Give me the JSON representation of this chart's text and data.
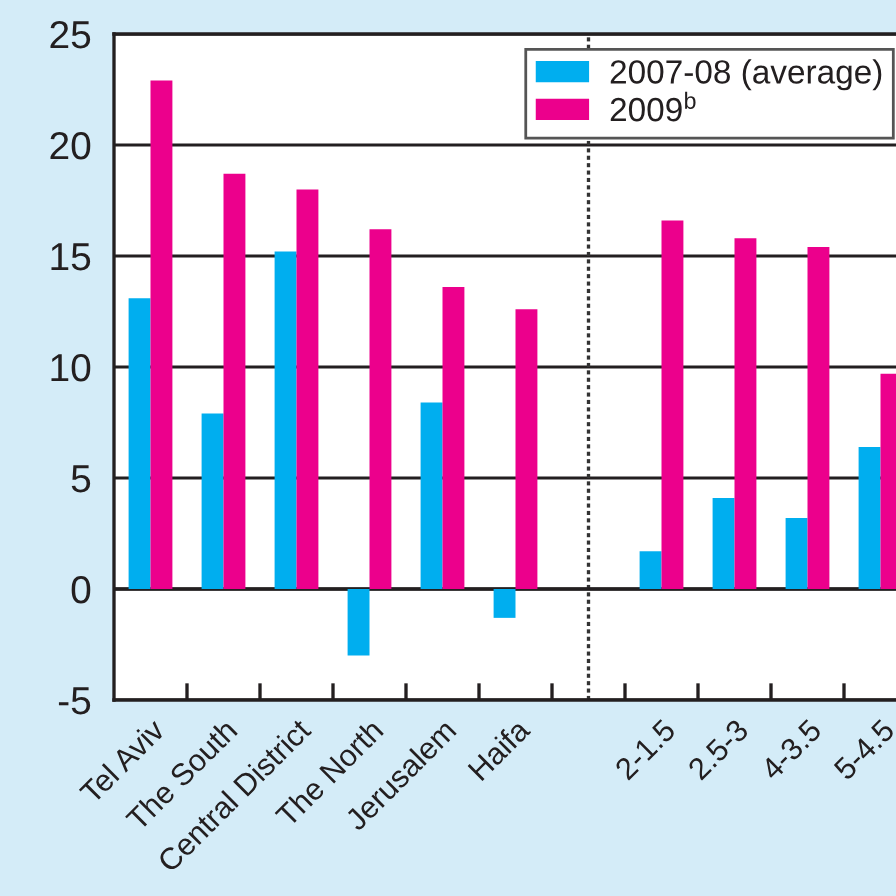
{
  "chart_data": {
    "type": "bar",
    "categories": [
      "Tel Aviv",
      "The South",
      "Central District",
      "The North",
      "Jerusalem",
      "Haifa",
      null,
      "2-1.5",
      "2.5-3",
      "4-3.5",
      "5-4.5"
    ],
    "series": [
      {
        "name": "2007-08 (average)",
        "color": "#00aeef",
        "values": [
          13.1,
          7.9,
          15.2,
          -3.0,
          8.4,
          -1.3,
          null,
          1.7,
          4.1,
          3.2,
          6.4
        ]
      },
      {
        "name": "2009$^{b}$",
        "color": "#ec008c",
        "values": [
          22.9,
          18.7,
          18.0,
          16.2,
          13.6,
          12.6,
          null,
          16.6,
          15.8,
          15.4,
          9.7
        ]
      }
    ],
    "ylim": [
      -5,
      25
    ],
    "yticks": [
      -5,
      0,
      5,
      10,
      15,
      20,
      25
    ],
    "grid": "y",
    "legend": "top right"
  }
}
